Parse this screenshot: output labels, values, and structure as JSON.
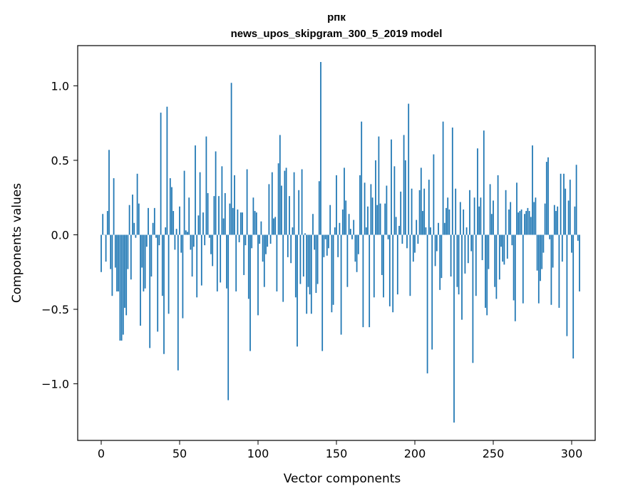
{
  "chart_data": {
    "type": "bar",
    "title_line1": "рпк",
    "title_line2": "news_upos_skipgram_300_5_2019 model",
    "xlabel": "Vector components",
    "ylabel": "Components values",
    "xlim": [
      -15,
      315
    ],
    "ylim": [
      -1.38,
      1.27
    ],
    "xticks": [
      0,
      50,
      100,
      150,
      200,
      250,
      300
    ],
    "xtick_labels": [
      "0",
      "50",
      "100",
      "150",
      "200",
      "250",
      "300"
    ],
    "yticks": [
      -1.0,
      -0.5,
      0.0,
      0.5,
      1.0
    ],
    "ytick_labels": [
      "−1.0",
      "−0.5",
      "0.0",
      "0.5",
      "1.0"
    ],
    "bar_color": "#1f77b4",
    "values": [
      -0.25,
      0.14,
      0.0,
      -0.18,
      0.16,
      0.57,
      -0.23,
      -0.41,
      0.38,
      -0.22,
      -0.38,
      -0.38,
      -0.71,
      -0.71,
      -0.67,
      -0.49,
      -0.54,
      -0.23,
      0.2,
      -0.3,
      0.27,
      0.08,
      -0.02,
      0.41,
      0.21,
      -0.61,
      -0.22,
      -0.38,
      -0.36,
      -0.08,
      0.18,
      -0.76,
      -0.28,
      0.08,
      0.18,
      -0.02,
      -0.65,
      -0.07,
      0.82,
      -0.41,
      -0.8,
      0.05,
      0.86,
      -0.53,
      0.38,
      0.32,
      0.16,
      -0.1,
      0.04,
      -0.91,
      0.19,
      -0.12,
      -0.56,
      0.43,
      0.03,
      0.02,
      0.25,
      -0.1,
      -0.28,
      -0.08,
      0.6,
      -0.42,
      0.13,
      0.42,
      -0.34,
      0.15,
      -0.07,
      0.66,
      0.28,
      -0.02,
      -0.13,
      -0.21,
      0.26,
      0.56,
      -0.38,
      0.26,
      -0.32,
      0.46,
      0.11,
      0.28,
      -0.36,
      -1.11,
      0.21,
      1.02,
      0.18,
      0.4,
      -0.38,
      0.17,
      -0.05,
      0.15,
      0.15,
      -0.27,
      -0.07,
      0.44,
      -0.43,
      -0.78,
      -0.09,
      0.25,
      0.16,
      0.15,
      -0.54,
      -0.06,
      0.09,
      -0.18,
      -0.35,
      -0.13,
      -0.08,
      0.34,
      -0.06,
      0.42,
      0.11,
      0.12,
      -0.38,
      0.48,
      0.67,
      0.33,
      -0.45,
      0.43,
      0.45,
      -0.15,
      0.26,
      -0.19,
      0.05,
      0.42,
      -0.42,
      -0.75,
      0.3,
      -0.33,
      0.44,
      -0.28,
      0.01,
      -0.53,
      -0.35,
      -0.4,
      -0.53,
      0.14,
      -0.1,
      -0.39,
      -0.33,
      0.36,
      1.16,
      -0.78,
      -0.15,
      -0.03,
      -0.14,
      -0.09,
      0.2,
      -0.52,
      -0.47,
      0.05,
      0.4,
      -0.15,
      0.08,
      -0.67,
      0.17,
      0.45,
      0.23,
      -0.35,
      0.14,
      0.04,
      -0.03,
      0.1,
      -0.18,
      -0.25,
      -0.13,
      0.4,
      0.76,
      -0.62,
      0.35,
      0.05,
      0.19,
      -0.62,
      0.34,
      0.25,
      -0.42,
      0.5,
      0.2,
      0.66,
      0.21,
      -0.27,
      -0.42,
      0.21,
      0.33,
      -0.03,
      -0.48,
      0.64,
      -0.52,
      0.46,
      0.12,
      -0.4,
      0.06,
      0.29,
      -0.06,
      0.67,
      0.5,
      -0.09,
      0.88,
      -0.41,
      0.31,
      -0.18,
      -0.12,
      0.1,
      -0.06,
      0.3,
      0.45,
      0.16,
      0.31,
      0.05,
      -0.93,
      0.37,
      0.05,
      -0.77,
      0.54,
      -0.21,
      -0.11,
      0.08,
      -0.37,
      -0.29,
      0.76,
      0.08,
      0.18,
      0.25,
      0.17,
      -0.28,
      0.72,
      -1.26,
      0.31,
      -0.35,
      -0.4,
      0.22,
      -0.57,
      0.17,
      -0.26,
      0.05,
      -0.19,
      0.3,
      -0.11,
      -0.86,
      0.25,
      -0.41,
      0.58,
      0.19,
      0.25,
      -0.17,
      0.7,
      -0.49,
      -0.54,
      -0.23,
      0.34,
      0.14,
      0.23,
      -0.35,
      -0.43,
      0.4,
      -0.3,
      -0.08,
      -0.18,
      -0.2,
      0.3,
      -0.16,
      0.17,
      0.22,
      -0.07,
      -0.44,
      -0.58,
      0.35,
      0.15,
      0.16,
      0.17,
      -0.46,
      0.14,
      0.16,
      0.18,
      0.16,
      0.12,
      0.6,
      0.22,
      0.25,
      -0.24,
      -0.46,
      -0.31,
      -0.23,
      -0.12,
      0.21,
      0.49,
      0.52,
      -0.03,
      -0.47,
      -0.22,
      0.2,
      0.16,
      0.19,
      -0.49,
      0.41,
      -0.18,
      0.41,
      0.31,
      -0.68,
      0.23,
      0.37,
      -0.12,
      -0.83,
      0.19,
      0.47,
      -0.04,
      -0.38
    ]
  }
}
